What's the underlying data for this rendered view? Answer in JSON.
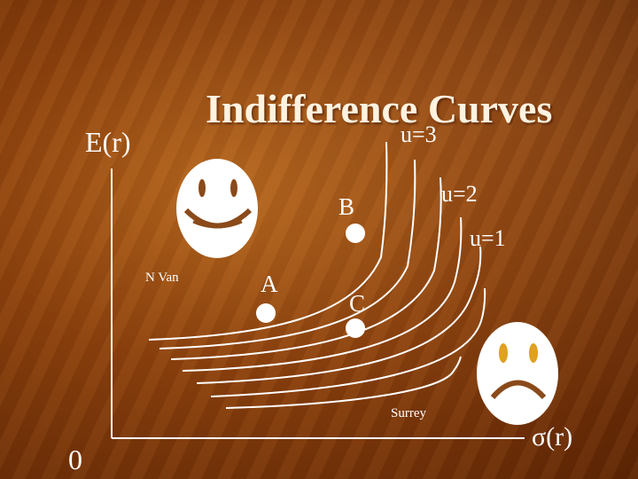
{
  "title": "Indifference Curves",
  "axes": {
    "y_label": "E(r)",
    "x_label": "σ(r)",
    "origin_label": "0"
  },
  "curves": [
    {
      "label": "u=3"
    },
    {
      "label": "u=2"
    },
    {
      "label": "u=1"
    }
  ],
  "points": {
    "a": "A",
    "b": "B",
    "c": "C"
  },
  "places": {
    "north": "N Van",
    "south": "Surrey"
  },
  "faces": {
    "happy": "smiley-face-icon",
    "sad": "sad-face-icon"
  },
  "colors": {
    "curve": "#ffffff",
    "background": "#8a3f0c",
    "sad_eyes": "#e0a020"
  }
}
